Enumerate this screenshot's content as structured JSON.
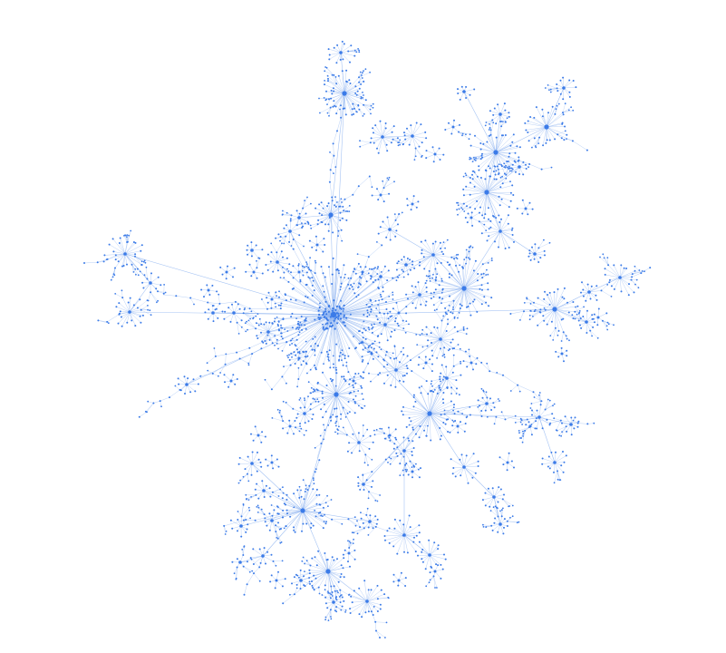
{
  "graph": {
    "type": "network",
    "layout_style": "radial force-directed tree with hub-and-spoke clusters",
    "background_color": "#ffffff",
    "node_color": "#3b7be8",
    "edge_color": "#8fb4f0"
  }
}
